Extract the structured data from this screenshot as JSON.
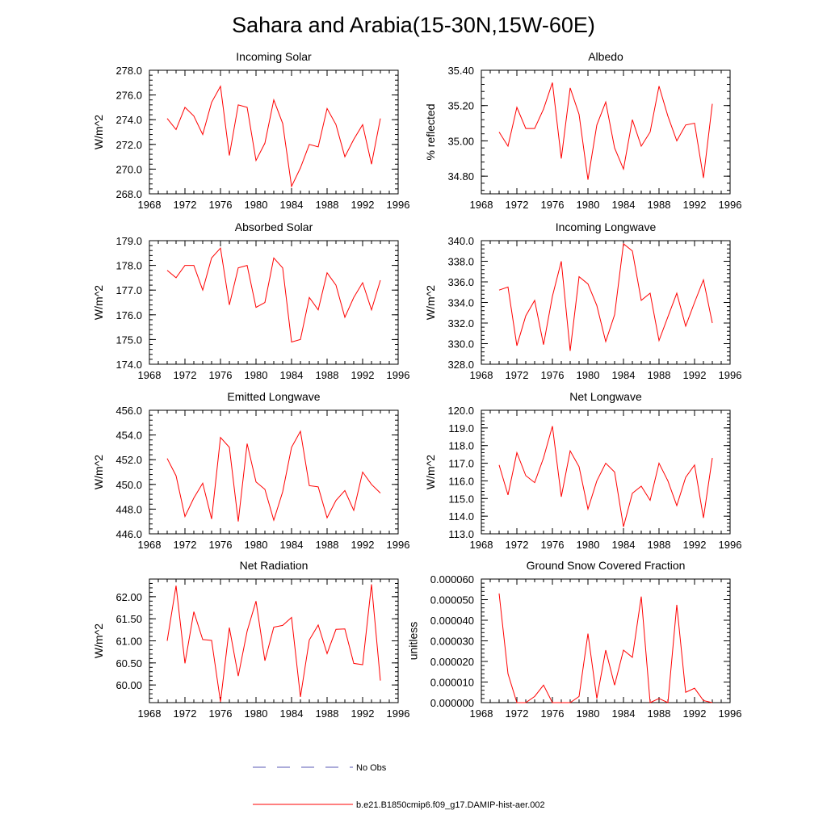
{
  "figure": {
    "title": "Sahara and Arabia(15-30N,15W-60E)"
  },
  "legend": {
    "placement": "bottom-center",
    "entries": [
      {
        "label": "No Obs",
        "color": "#5a5ab4",
        "style": "dashed"
      },
      {
        "label": "b.e21.B1850cmip6.f09_g17.DAMIP-hist-aer.002",
        "color": "#ff0000",
        "style": "solid"
      }
    ]
  },
  "chart_data": [
    {
      "type": "line",
      "title": "Incoming Solar",
      "xlabel": "",
      "ylabel": "W/m^2",
      "xlim": [
        1968,
        1996
      ],
      "ylim": [
        268.0,
        278.0
      ],
      "x_ticks": [
        1968,
        1972,
        1976,
        1980,
        1984,
        1988,
        1992,
        1996
      ],
      "y_ticks": [
        268.0,
        270.0,
        272.0,
        274.0,
        276.0,
        278.0
      ],
      "y_tick_labels": [
        "268.0",
        "270.0",
        "272.0",
        "274.0",
        "276.0",
        "278.0"
      ],
      "grid": false,
      "series": [
        {
          "color": "#ff0000",
          "x": [
            1970,
            1971,
            1972,
            1973,
            1974,
            1975,
            1976,
            1977,
            1978,
            1979,
            1980,
            1981,
            1982,
            1983,
            1984,
            1985,
            1986,
            1987,
            1988,
            1989,
            1990,
            1991,
            1992,
            1993,
            1994
          ],
          "values": [
            274.1,
            273.2,
            275.0,
            274.3,
            272.8,
            275.4,
            276.7,
            271.1,
            275.2,
            275.0,
            270.7,
            272.1,
            275.6,
            273.7,
            268.6,
            270.1,
            272.0,
            271.8,
            274.9,
            273.6,
            271.0,
            272.4,
            273.6,
            270.4,
            274.1
          ]
        }
      ]
    },
    {
      "type": "line",
      "title": "Albedo",
      "xlabel": "",
      "ylabel": "% reflected",
      "xlim": [
        1968,
        1996
      ],
      "ylim": [
        34.7,
        35.4
      ],
      "x_ticks": [
        1968,
        1972,
        1976,
        1980,
        1984,
        1988,
        1992,
        1996
      ],
      "y_ticks": [
        34.8,
        35.0,
        35.2,
        35.4
      ],
      "y_tick_labels": [
        "34.80",
        "35.00",
        "35.20",
        "35.40"
      ],
      "grid": false,
      "series": [
        {
          "color": "#ff0000",
          "x": [
            1970,
            1971,
            1972,
            1973,
            1974,
            1975,
            1976,
            1977,
            1978,
            1979,
            1980,
            1981,
            1982,
            1983,
            1984,
            1985,
            1986,
            1987,
            1988,
            1989,
            1990,
            1991,
            1992,
            1993,
            1994
          ],
          "values": [
            35.05,
            34.97,
            35.19,
            35.07,
            35.07,
            35.18,
            35.33,
            34.9,
            35.3,
            35.15,
            34.78,
            35.09,
            35.22,
            34.96,
            34.84,
            35.12,
            34.97,
            35.05,
            35.31,
            35.14,
            35.0,
            35.09,
            35.1,
            34.79,
            35.21
          ]
        }
      ]
    },
    {
      "type": "line",
      "title": "Absorbed Solar",
      "xlabel": "",
      "ylabel": "W/m^2",
      "xlim": [
        1968,
        1996
      ],
      "ylim": [
        174.0,
        179.0
      ],
      "x_ticks": [
        1968,
        1972,
        1976,
        1980,
        1984,
        1988,
        1992,
        1996
      ],
      "y_ticks": [
        174.0,
        175.0,
        176.0,
        177.0,
        178.0,
        179.0
      ],
      "y_tick_labels": [
        "174.0",
        "175.0",
        "176.0",
        "177.0",
        "178.0",
        "179.0"
      ],
      "grid": false,
      "series": [
        {
          "color": "#ff0000",
          "x": [
            1970,
            1971,
            1972,
            1973,
            1974,
            1975,
            1976,
            1977,
            1978,
            1979,
            1980,
            1981,
            1982,
            1983,
            1984,
            1985,
            1986,
            1987,
            1988,
            1989,
            1990,
            1991,
            1992,
            1993,
            1994
          ],
          "values": [
            177.8,
            177.5,
            178.0,
            178.0,
            177.0,
            178.3,
            178.7,
            176.4,
            177.9,
            178.0,
            176.3,
            176.5,
            178.3,
            177.9,
            174.9,
            175.0,
            176.7,
            176.2,
            177.7,
            177.2,
            175.9,
            176.7,
            177.3,
            176.2,
            177.4
          ]
        }
      ]
    },
    {
      "type": "line",
      "title": "Incoming Longwave",
      "xlabel": "",
      "ylabel": "W/m^2",
      "xlim": [
        1968,
        1996
      ],
      "ylim": [
        328.0,
        340.0
      ],
      "x_ticks": [
        1968,
        1972,
        1976,
        1980,
        1984,
        1988,
        1992,
        1996
      ],
      "y_ticks": [
        328.0,
        330.0,
        332.0,
        334.0,
        336.0,
        338.0,
        340.0
      ],
      "y_tick_labels": [
        "328.0",
        "330.0",
        "332.0",
        "334.0",
        "336.0",
        "338.0",
        "340.0"
      ],
      "grid": false,
      "series": [
        {
          "color": "#ff0000",
          "x": [
            1970,
            1971,
            1972,
            1973,
            1974,
            1975,
            1976,
            1977,
            1978,
            1979,
            1980,
            1981,
            1982,
            1983,
            1984,
            1985,
            1986,
            1987,
            1988,
            1989,
            1990,
            1991,
            1992,
            1993,
            1994
          ],
          "values": [
            335.2,
            335.5,
            329.8,
            332.7,
            334.2,
            329.9,
            334.6,
            338.0,
            329.3,
            336.5,
            335.8,
            333.7,
            330.2,
            332.8,
            339.7,
            339.0,
            334.2,
            334.9,
            330.3,
            332.6,
            334.9,
            331.7,
            334.0,
            336.2,
            332.0
          ]
        }
      ]
    },
    {
      "type": "line",
      "title": "Emitted Longwave",
      "xlabel": "",
      "ylabel": "W/m^2",
      "xlim": [
        1968,
        1996
      ],
      "ylim": [
        446.0,
        456.0
      ],
      "x_ticks": [
        1968,
        1972,
        1976,
        1980,
        1984,
        1988,
        1992,
        1996
      ],
      "y_ticks": [
        446.0,
        448.0,
        450.0,
        452.0,
        454.0,
        456.0
      ],
      "y_tick_labels": [
        "446.0",
        "448.0",
        "450.0",
        "452.0",
        "454.0",
        "456.0"
      ],
      "grid": false,
      "series": [
        {
          "color": "#ff0000",
          "x": [
            1970,
            1971,
            1972,
            1973,
            1974,
            1975,
            1976,
            1977,
            1978,
            1979,
            1980,
            1981,
            1982,
            1983,
            1984,
            1985,
            1986,
            1987,
            1988,
            1989,
            1990,
            1991,
            1992,
            1993,
            1994
          ],
          "values": [
            452.1,
            450.7,
            447.4,
            448.9,
            450.1,
            447.2,
            453.8,
            453.0,
            447.0,
            453.3,
            450.2,
            449.6,
            447.1,
            449.4,
            453.0,
            454.3,
            449.9,
            449.8,
            447.3,
            448.7,
            449.5,
            447.9,
            451.0,
            450.0,
            449.3
          ]
        }
      ]
    },
    {
      "type": "line",
      "title": "Net Longwave",
      "xlabel": "",
      "ylabel": "W/m^2",
      "xlim": [
        1968,
        1996
      ],
      "ylim": [
        113.0,
        120.0
      ],
      "x_ticks": [
        1968,
        1972,
        1976,
        1980,
        1984,
        1988,
        1992,
        1996
      ],
      "y_ticks": [
        113.0,
        114.0,
        115.0,
        116.0,
        117.0,
        118.0,
        119.0,
        120.0
      ],
      "y_tick_labels": [
        "113.0",
        "114.0",
        "115.0",
        "116.0",
        "117.0",
        "118.0",
        "119.0",
        "120.0"
      ],
      "grid": false,
      "series": [
        {
          "color": "#ff0000",
          "x": [
            1970,
            1971,
            1972,
            1973,
            1974,
            1975,
            1976,
            1977,
            1978,
            1979,
            1980,
            1981,
            1982,
            1983,
            1984,
            1985,
            1986,
            1987,
            1988,
            1989,
            1990,
            1991,
            1992,
            1993,
            1994
          ],
          "values": [
            116.9,
            115.2,
            117.6,
            116.3,
            115.9,
            117.3,
            119.1,
            115.1,
            117.7,
            116.8,
            114.4,
            116.0,
            117.0,
            116.5,
            113.4,
            115.3,
            115.7,
            114.9,
            117.0,
            116.0,
            114.6,
            116.2,
            116.9,
            113.9,
            117.3
          ]
        }
      ]
    },
    {
      "type": "line",
      "title": "Net Radiation",
      "xlabel": "",
      "ylabel": "W/m^2",
      "xlim": [
        1968,
        1996
      ],
      "ylim": [
        59.6,
        62.4
      ],
      "x_ticks": [
        1968,
        1972,
        1976,
        1980,
        1984,
        1988,
        1992,
        1996
      ],
      "y_ticks": [
        60.0,
        60.5,
        61.0,
        61.5,
        62.0
      ],
      "y_tick_labels": [
        "60.00",
        "60.50",
        "61.00",
        "61.50",
        "62.00"
      ],
      "grid": false,
      "series": [
        {
          "color": "#ff0000",
          "x": [
            1970,
            1971,
            1972,
            1973,
            1974,
            1975,
            1976,
            1977,
            1978,
            1979,
            1980,
            1981,
            1982,
            1983,
            1984,
            1985,
            1986,
            1987,
            1988,
            1989,
            1990,
            1991,
            1992,
            1993,
            1994
          ],
          "values": [
            61.0,
            62.25,
            60.49,
            61.66,
            61.03,
            61.01,
            59.62,
            61.3,
            60.2,
            61.22,
            61.9,
            60.55,
            61.31,
            61.35,
            61.53,
            59.73,
            61.02,
            61.36,
            60.71,
            61.26,
            61.27,
            60.49,
            60.46,
            62.28,
            60.1
          ]
        }
      ]
    },
    {
      "type": "line",
      "title": "Ground Snow Covered Fraction",
      "xlabel": "",
      "ylabel": "unitless",
      "xlim": [
        1968,
        1996
      ],
      "ylim": [
        0.0,
        6e-05
      ],
      "x_ticks": [
        1968,
        1972,
        1976,
        1980,
        1984,
        1988,
        1992,
        1996
      ],
      "y_ticks": [
        0.0,
        1e-05,
        2e-05,
        3e-05,
        4e-05,
        5e-05,
        6e-05
      ],
      "y_tick_labels": [
        "0.000000",
        "0.000010",
        "0.000020",
        "0.000030",
        "0.000040",
        "0.000050",
        "0.000060"
      ],
      "grid": false,
      "series": [
        {
          "color": "#ff0000",
          "x": [
            1970,
            1971,
            1972,
            1973,
            1974,
            1975,
            1976,
            1977,
            1978,
            1979,
            1980,
            1981,
            1982,
            1983,
            1984,
            1985,
            1986,
            1987,
            1988,
            1989,
            1990,
            1991,
            1992,
            1993,
            1994
          ],
          "values": [
            5.3e-05,
            1.4e-05,
            0.0,
            0.0,
            3e-06,
            8.5e-06,
            0.0,
            0.0,
            0.0,
            3e-06,
            3.35e-05,
            2e-06,
            2.55e-05,
            8.5e-06,
            2.55e-05,
            2.2e-05,
            5.15e-05,
            0.0,
            2e-06,
            0.0,
            4.75e-05,
            5e-06,
            7e-06,
            1e-06,
            0.0
          ]
        }
      ]
    }
  ]
}
